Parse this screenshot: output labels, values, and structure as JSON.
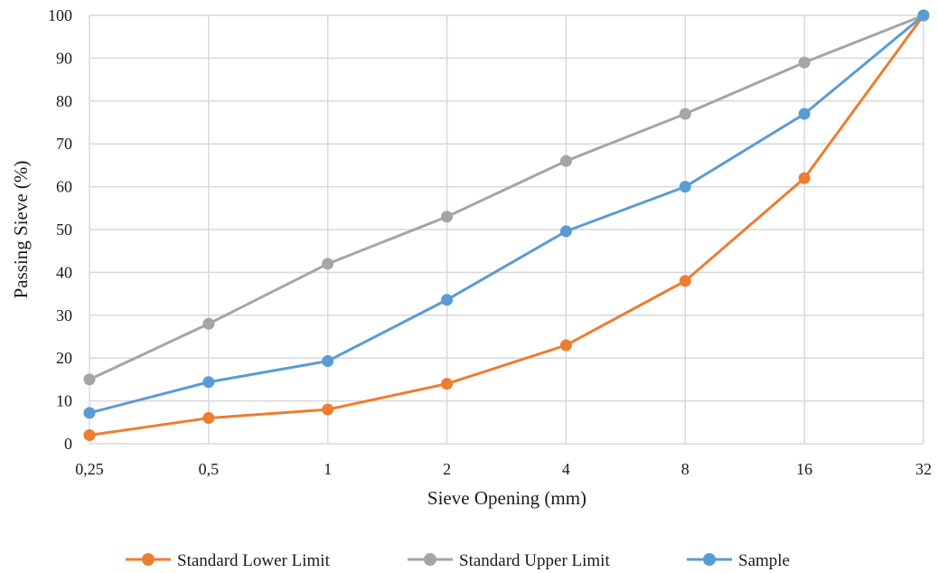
{
  "chart_data": {
    "type": "line",
    "xlabel": "Sieve Opening (mm)",
    "ylabel": "Passing Sieve (%)",
    "x": [
      "0,25",
      "0,5",
      "1",
      "2",
      "4",
      "8",
      "16",
      "32"
    ],
    "ylim": [
      0,
      100
    ],
    "yticks": [
      0,
      10,
      20,
      30,
      40,
      50,
      60,
      70,
      80,
      90,
      100
    ],
    "grid": true,
    "legend_position": "bottom",
    "series": [
      {
        "name": "Standard Lower Limit",
        "color": "#ed7d31",
        "values": [
          2,
          6,
          8,
          14,
          23,
          38,
          62,
          100
        ]
      },
      {
        "name": "Standard Upper Limit",
        "color": "#a5a5a5",
        "values": [
          15,
          28,
          42,
          53,
          66,
          77,
          89,
          100
        ]
      },
      {
        "name": "Sample",
        "color": "#5b9bd5",
        "values": [
          7.2,
          14.4,
          19.3,
          33.6,
          49.6,
          60,
          77,
          100
        ]
      }
    ]
  }
}
